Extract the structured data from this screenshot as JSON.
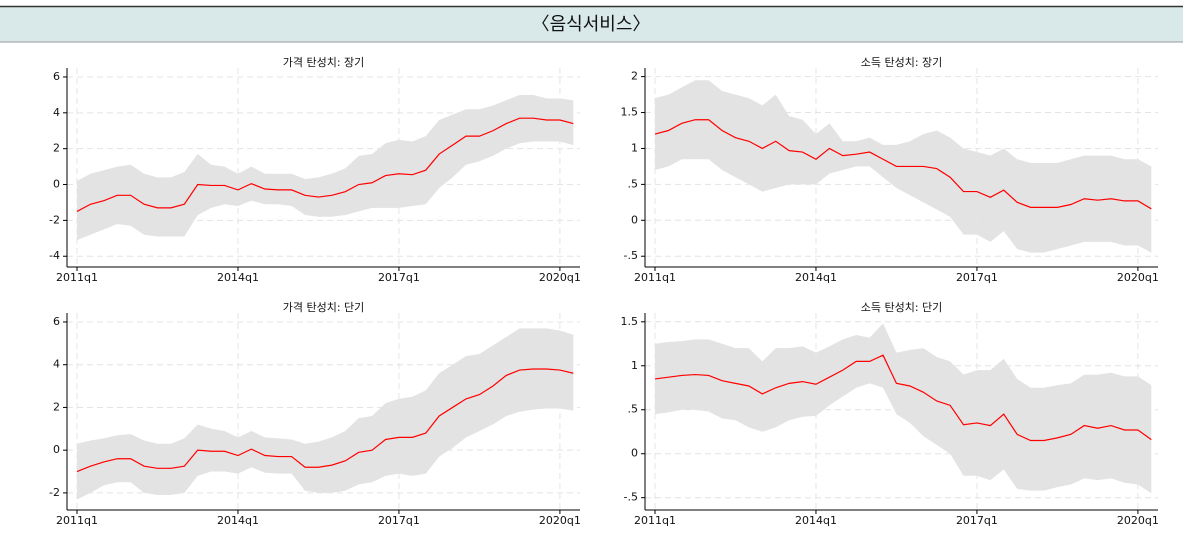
{
  "header": {
    "title": "〈음식서비스〉"
  },
  "chart_data": [
    {
      "type": "line",
      "title": "가격 탄성치: 장기",
      "categories": [
        "2011q1",
        null,
        null,
        null,
        null,
        null,
        null,
        null,
        null,
        null,
        null,
        null,
        "2014q1",
        null,
        null,
        null,
        null,
        null,
        null,
        null,
        null,
        null,
        null,
        null,
        "2017q1",
        null,
        null,
        null,
        null,
        null,
        null,
        null,
        null,
        null,
        null,
        null,
        "2020q1",
        null
      ],
      "xticks": [
        0,
        12,
        24,
        36
      ],
      "ylim": [
        -4.6,
        6.5
      ],
      "yticks": [
        6,
        4,
        2,
        0,
        -2,
        -4
      ],
      "grid": true,
      "series": [
        {
          "color": "#ff0000",
          "values": [
            -1.5,
            -1.1,
            -0.9,
            -0.6,
            -0.6,
            -1.1,
            -1.3,
            -1.3,
            -1.1,
            0.0,
            -0.05,
            -0.05,
            -0.3,
            0.05,
            -0.25,
            -0.3,
            -0.3,
            -0.6,
            -0.7,
            -0.6,
            -0.4,
            0.0,
            0.1,
            0.5,
            0.6,
            0.55,
            0.8,
            1.7,
            2.2,
            2.7,
            2.7,
            3.0,
            3.4,
            3.7,
            3.7,
            3.6,
            3.6,
            3.4
          ]
        }
      ],
      "band": {
        "color": "#e3e3e3",
        "upper": [
          0.2,
          0.6,
          0.8,
          1.0,
          1.1,
          0.6,
          0.4,
          0.4,
          0.7,
          1.7,
          1.1,
          1.0,
          0.6,
          1.0,
          0.6,
          0.6,
          0.6,
          0.3,
          0.4,
          0.6,
          0.9,
          1.6,
          1.7,
          2.3,
          2.5,
          2.4,
          2.7,
          3.6,
          3.9,
          4.2,
          4.2,
          4.4,
          4.7,
          5.0,
          5.0,
          4.8,
          4.8,
          4.7
        ],
        "lower": [
          -3.1,
          -2.8,
          -2.5,
          -2.2,
          -2.3,
          -2.8,
          -2.9,
          -2.9,
          -2.9,
          -1.7,
          -1.3,
          -1.1,
          -1.2,
          -0.9,
          -1.1,
          -1.1,
          -1.2,
          -1.7,
          -1.8,
          -1.8,
          -1.7,
          -1.5,
          -1.3,
          -1.3,
          -1.3,
          -1.2,
          -1.1,
          -0.2,
          0.4,
          1.1,
          1.3,
          1.6,
          2.0,
          2.3,
          2.4,
          2.4,
          2.4,
          2.2
        ]
      }
    },
    {
      "type": "line",
      "title": "소득 탄성치: 장기",
      "categories": [
        "2011q1",
        null,
        null,
        null,
        null,
        null,
        null,
        null,
        null,
        null,
        null,
        null,
        "2014q1",
        null,
        null,
        null,
        null,
        null,
        null,
        null,
        null,
        null,
        null,
        null,
        "2017q1",
        null,
        null,
        null,
        null,
        null,
        null,
        null,
        null,
        null,
        null,
        null,
        "2020q1",
        null
      ],
      "xticks": [
        0,
        12,
        24,
        36
      ],
      "ylim": [
        -0.65,
        2.12
      ],
      "yticks": [
        2,
        1.5,
        1,
        {
          "value": 0.5,
          "label": ".5"
        },
        0,
        {
          "value": -0.5,
          "label": "-.5"
        }
      ],
      "grid": true,
      "series": [
        {
          "color": "#ff0000",
          "values": [
            1.2,
            1.25,
            1.35,
            1.4,
            1.4,
            1.25,
            1.15,
            1.1,
            1.0,
            1.1,
            0.97,
            0.95,
            0.85,
            1.0,
            0.9,
            0.92,
            0.95,
            0.85,
            0.75,
            0.75,
            0.75,
            0.72,
            0.6,
            0.4,
            0.4,
            0.32,
            0.42,
            0.25,
            0.18,
            0.18,
            0.18,
            0.22,
            0.3,
            0.28,
            0.3,
            0.27,
            0.27,
            0.16
          ]
        }
      ],
      "band": {
        "color": "#e3e3e3",
        "upper": [
          1.7,
          1.75,
          1.85,
          1.95,
          1.95,
          1.8,
          1.75,
          1.7,
          1.6,
          1.75,
          1.45,
          1.4,
          1.2,
          1.35,
          1.1,
          1.1,
          1.15,
          1.05,
          1.05,
          1.1,
          1.2,
          1.25,
          1.15,
          1.0,
          0.95,
          0.9,
          1.0,
          0.85,
          0.8,
          0.8,
          0.8,
          0.85,
          0.9,
          0.9,
          0.9,
          0.85,
          0.85,
          0.75
        ],
        "lower": [
          0.7,
          0.75,
          0.85,
          0.85,
          0.85,
          0.7,
          0.6,
          0.5,
          0.4,
          0.45,
          0.5,
          0.5,
          0.5,
          0.65,
          0.7,
          0.75,
          0.75,
          0.6,
          0.45,
          0.35,
          0.25,
          0.15,
          0.05,
          -0.2,
          -0.2,
          -0.3,
          -0.15,
          -0.4,
          -0.45,
          -0.45,
          -0.4,
          -0.35,
          -0.3,
          -0.3,
          -0.3,
          -0.35,
          -0.35,
          -0.45
        ]
      }
    },
    {
      "type": "line",
      "title": "가격 탄성치: 단기",
      "categories": [
        "2011q1",
        null,
        null,
        null,
        null,
        null,
        null,
        null,
        null,
        null,
        null,
        null,
        "2014q1",
        null,
        null,
        null,
        null,
        null,
        null,
        null,
        null,
        null,
        null,
        null,
        "2017q1",
        null,
        null,
        null,
        null,
        null,
        null,
        null,
        null,
        null,
        null,
        null,
        "2020q1",
        null
      ],
      "xticks": [
        0,
        12,
        24,
        36
      ],
      "ylim": [
        -2.8,
        6.42
      ],
      "yticks": [
        6,
        4,
        2,
        0,
        -2
      ],
      "grid": true,
      "series": [
        {
          "color": "#ff0000",
          "values": [
            -1.0,
            -0.75,
            -0.55,
            -0.4,
            -0.4,
            -0.75,
            -0.85,
            -0.85,
            -0.75,
            0.0,
            -0.05,
            -0.05,
            -0.25,
            0.05,
            -0.25,
            -0.3,
            -0.3,
            -0.8,
            -0.8,
            -0.7,
            -0.5,
            -0.1,
            0.0,
            0.5,
            0.6,
            0.6,
            0.8,
            1.6,
            2.0,
            2.4,
            2.6,
            3.0,
            3.5,
            3.75,
            3.8,
            3.8,
            3.75,
            3.6
          ]
        }
      ],
      "band": {
        "color": "#e3e3e3",
        "upper": [
          0.3,
          0.45,
          0.55,
          0.7,
          0.75,
          0.45,
          0.3,
          0.3,
          0.55,
          1.2,
          1.0,
          0.9,
          0.6,
          0.9,
          0.6,
          0.55,
          0.5,
          0.3,
          0.4,
          0.6,
          0.9,
          1.5,
          1.6,
          2.2,
          2.4,
          2.5,
          2.8,
          3.6,
          4.0,
          4.4,
          4.5,
          4.9,
          5.3,
          5.7,
          5.7,
          5.7,
          5.6,
          5.4
        ],
        "lower": [
          -2.3,
          -2.0,
          -1.65,
          -1.5,
          -1.5,
          -2.0,
          -2.1,
          -2.1,
          -2.0,
          -1.2,
          -1.0,
          -1.0,
          -1.1,
          -0.8,
          -1.05,
          -1.1,
          -1.1,
          -1.9,
          -2.0,
          -2.0,
          -1.9,
          -1.6,
          -1.5,
          -1.2,
          -1.1,
          -1.2,
          -1.1,
          -0.3,
          0.1,
          0.6,
          0.9,
          1.2,
          1.6,
          1.8,
          1.9,
          1.95,
          1.95,
          1.85
        ]
      }
    },
    {
      "type": "line",
      "title": "소득 탄성치: 단기",
      "categories": [
        "2011q1",
        null,
        null,
        null,
        null,
        null,
        null,
        null,
        null,
        null,
        null,
        null,
        "2014q1",
        null,
        null,
        null,
        null,
        null,
        null,
        null,
        null,
        null,
        null,
        null,
        "2017q1",
        null,
        null,
        null,
        null,
        null,
        null,
        null,
        null,
        null,
        null,
        null,
        "2020q1",
        null
      ],
      "xticks": [
        0,
        12,
        24,
        36
      ],
      "ylim": [
        -0.64,
        1.6
      ],
      "yticks": [
        1.5,
        1,
        {
          "value": 0.5,
          "label": ".5"
        },
        0,
        {
          "value": -0.5,
          "label": "-.5"
        }
      ],
      "grid": true,
      "series": [
        {
          "color": "#ff0000",
          "values": [
            0.85,
            0.87,
            0.89,
            0.9,
            0.89,
            0.83,
            0.8,
            0.77,
            0.68,
            0.75,
            0.8,
            0.82,
            0.79,
            0.87,
            0.95,
            1.05,
            1.05,
            1.12,
            0.8,
            0.77,
            0.7,
            0.6,
            0.55,
            0.33,
            0.35,
            0.32,
            0.45,
            0.22,
            0.15,
            0.15,
            0.18,
            0.22,
            0.32,
            0.29,
            0.32,
            0.27,
            0.27,
            0.16
          ]
        }
      ],
      "band": {
        "color": "#e3e3e3",
        "upper": [
          1.25,
          1.27,
          1.28,
          1.3,
          1.3,
          1.25,
          1.2,
          1.2,
          1.05,
          1.2,
          1.2,
          1.22,
          1.15,
          1.22,
          1.3,
          1.35,
          1.32,
          1.48,
          1.15,
          1.18,
          1.2,
          1.1,
          1.05,
          0.9,
          0.95,
          0.95,
          1.08,
          0.85,
          0.75,
          0.75,
          0.78,
          0.8,
          0.9,
          0.9,
          0.92,
          0.88,
          0.88,
          0.78
        ],
        "lower": [
          0.45,
          0.47,
          0.5,
          0.5,
          0.48,
          0.4,
          0.38,
          0.3,
          0.25,
          0.3,
          0.38,
          0.42,
          0.43,
          0.55,
          0.65,
          0.75,
          0.8,
          0.75,
          0.45,
          0.35,
          0.2,
          0.1,
          0.0,
          -0.25,
          -0.25,
          -0.3,
          -0.18,
          -0.4,
          -0.42,
          -0.42,
          -0.38,
          -0.35,
          -0.28,
          -0.3,
          -0.28,
          -0.33,
          -0.35,
          -0.45
        ]
      }
    }
  ]
}
